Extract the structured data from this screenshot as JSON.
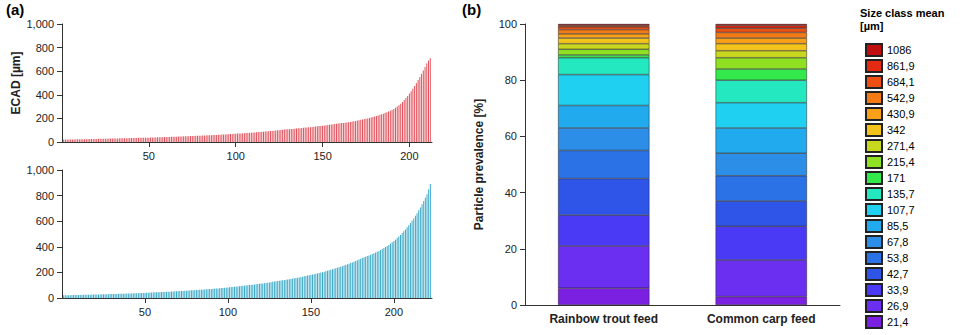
{
  "chart_data": [
    {
      "panel": "(a)",
      "type": "bar",
      "ylabel": "ECAD [µm]",
      "color": "#e0505a",
      "grid": false,
      "xlim": [
        0,
        213
      ],
      "xticks": [
        50,
        100,
        150,
        200
      ],
      "ylim": [
        0,
        1000
      ],
      "yticks": [
        0,
        200,
        400,
        600,
        800,
        1000
      ],
      "x": [
        1,
        2,
        3,
        4,
        5,
        6,
        7,
        8,
        9,
        10,
        11,
        12,
        13,
        14,
        15,
        16,
        17,
        18,
        19,
        20,
        21,
        22,
        23,
        24,
        25,
        26,
        27,
        28,
        29,
        30,
        31,
        32,
        33,
        34,
        35,
        36,
        37,
        38,
        39,
        40,
        41,
        42,
        43,
        44,
        45,
        46,
        47,
        48,
        49,
        50,
        51,
        52,
        53,
        54,
        55,
        56,
        57,
        58,
        59,
        60,
        61,
        62,
        63,
        64,
        65,
        66,
        67,
        68,
        69,
        70,
        71,
        72,
        73,
        74,
        75,
        76,
        77,
        78,
        79,
        80,
        81,
        82,
        83,
        84,
        85,
        86,
        87,
        88,
        89,
        90,
        91,
        92,
        93,
        94,
        95,
        96,
        97,
        98,
        99,
        100,
        101,
        102,
        103,
        104,
        105,
        106,
        107,
        108,
        109,
        110,
        111,
        112,
        113,
        114,
        115,
        116,
        117,
        118,
        119,
        120,
        121,
        122,
        123,
        124,
        125,
        126,
        127,
        128,
        129,
        130,
        131,
        132,
        133,
        134,
        135,
        136,
        137,
        138,
        139,
        140,
        141,
        142,
        143,
        144,
        145,
        146,
        147,
        148,
        149,
        150,
        151,
        152,
        153,
        154,
        155,
        156,
        157,
        158,
        159,
        160,
        161,
        162,
        163,
        164,
        165,
        166,
        167,
        168,
        169,
        170,
        171,
        172,
        173,
        174,
        175,
        176,
        177,
        178,
        179,
        180,
        181,
        182,
        183,
        184,
        185,
        186,
        187,
        188,
        189,
        190,
        191,
        192,
        193,
        194,
        195,
        196,
        197,
        198,
        199,
        200,
        201,
        202,
        203,
        204,
        205,
        206,
        207,
        208,
        209,
        210,
        211,
        212
      ],
      "values": [
        21,
        21,
        21,
        22,
        22,
        22,
        22,
        23,
        23,
        23,
        23,
        24,
        24,
        24,
        25,
        25,
        25,
        26,
        26,
        26,
        27,
        27,
        27,
        28,
        28,
        28,
        29,
        29,
        29,
        30,
        30,
        30,
        31,
        31,
        31,
        32,
        32,
        32,
        33,
        33,
        33,
        34,
        34,
        35,
        35,
        35,
        36,
        36,
        37,
        37,
        38,
        38,
        39,
        39,
        40,
        40,
        41,
        41,
        42,
        42,
        43,
        43,
        44,
        44,
        45,
        45,
        46,
        46,
        47,
        48,
        48,
        49,
        49,
        50,
        51,
        51,
        52,
        53,
        53,
        54,
        55,
        55,
        56,
        57,
        57,
        58,
        59,
        60,
        60,
        61,
        62,
        63,
        64,
        64,
        65,
        66,
        67,
        68,
        69,
        70,
        71,
        72,
        73,
        74,
        75,
        76,
        77,
        78,
        79,
        80,
        81,
        82,
        84,
        85,
        86,
        87,
        89,
        90,
        91,
        93,
        94,
        96,
        97,
        99,
        100,
        102,
        103,
        105,
        107,
        108,
        108,
        110,
        111,
        113,
        114,
        116,
        117,
        119,
        120,
        122,
        123,
        125,
        126,
        128,
        130,
        131,
        133,
        135,
        136,
        138,
        140,
        142,
        144,
        146,
        148,
        150,
        152,
        154,
        156,
        158,
        160,
        162,
        164,
        166,
        168,
        170,
        173,
        176,
        179,
        182,
        185,
        188,
        191,
        194,
        197,
        200,
        204,
        208,
        212,
        216,
        220,
        225,
        230,
        235,
        240,
        246,
        252,
        258,
        265,
        272,
        280,
        290,
        300,
        312,
        325,
        340,
        355,
        372,
        390,
        410,
        430,
        452,
        475,
        500,
        525,
        550,
        578,
        605,
        635,
        665,
        690,
        710
      ]
    },
    {
      "type": "bar",
      "color": "#3aa9c8",
      "grid": false,
      "xlim": [
        0,
        223
      ],
      "xticks": [
        50,
        100,
        150,
        200
      ],
      "ylim": [
        0,
        1000
      ],
      "yticks": [
        0,
        200,
        400,
        600,
        800,
        1000
      ],
      "x": [
        1,
        2,
        3,
        4,
        5,
        6,
        7,
        8,
        9,
        10,
        11,
        12,
        13,
        14,
        15,
        16,
        17,
        18,
        19,
        20,
        21,
        22,
        23,
        24,
        25,
        26,
        27,
        28,
        29,
        30,
        31,
        32,
        33,
        34,
        35,
        36,
        37,
        38,
        39,
        40,
        41,
        42,
        43,
        44,
        45,
        46,
        47,
        48,
        49,
        50,
        51,
        52,
        53,
        54,
        55,
        56,
        57,
        58,
        59,
        60,
        61,
        62,
        63,
        64,
        65,
        66,
        67,
        68,
        69,
        70,
        71,
        72,
        73,
        74,
        75,
        76,
        77,
        78,
        79,
        80,
        81,
        82,
        83,
        84,
        85,
        86,
        87,
        88,
        89,
        90,
        91,
        92,
        93,
        94,
        95,
        96,
        97,
        98,
        99,
        100,
        101,
        102,
        103,
        104,
        105,
        106,
        107,
        108,
        109,
        110,
        111,
        112,
        113,
        114,
        115,
        116,
        117,
        118,
        119,
        120,
        121,
        122,
        123,
        124,
        125,
        126,
        127,
        128,
        129,
        130,
        131,
        132,
        133,
        134,
        135,
        136,
        137,
        138,
        139,
        140,
        141,
        142,
        143,
        144,
        145,
        146,
        147,
        148,
        149,
        150,
        151,
        152,
        153,
        154,
        155,
        156,
        157,
        158,
        159,
        160,
        161,
        162,
        163,
        164,
        165,
        166,
        167,
        168,
        169,
        170,
        171,
        172,
        173,
        174,
        175,
        176,
        177,
        178,
        179,
        180,
        181,
        182,
        183,
        184,
        185,
        186,
        187,
        188,
        189,
        190,
        191,
        192,
        193,
        194,
        195,
        196,
        197,
        198,
        199,
        200,
        201,
        202,
        203,
        204,
        205,
        206,
        207,
        208,
        209,
        210,
        211,
        212,
        213,
        214,
        215,
        216,
        217,
        218,
        219,
        220,
        221,
        222
      ],
      "values": [
        21,
        21,
        22,
        22,
        22,
        23,
        23,
        23,
        24,
        24,
        24,
        25,
        25,
        25,
        26,
        26,
        26,
        27,
        27,
        27,
        28,
        28,
        28,
        29,
        29,
        29,
        30,
        30,
        31,
        31,
        31,
        32,
        32,
        33,
        33,
        33,
        34,
        34,
        35,
        35,
        36,
        36,
        37,
        37,
        38,
        38,
        39,
        39,
        40,
        40,
        41,
        41,
        42,
        42,
        43,
        44,
        44,
        45,
        45,
        46,
        47,
        47,
        48,
        49,
        49,
        50,
        51,
        52,
        52,
        53,
        54,
        55,
        55,
        56,
        57,
        58,
        59,
        60,
        60,
        61,
        62,
        63,
        64,
        65,
        66,
        67,
        68,
        69,
        70,
        71,
        72,
        73,
        74,
        75,
        76,
        78,
        79,
        80,
        81,
        82,
        84,
        85,
        86,
        88,
        89,
        90,
        92,
        93,
        95,
        96,
        98,
        99,
        101,
        102,
        104,
        106,
        107,
        109,
        111,
        113,
        114,
        116,
        118,
        120,
        122,
        124,
        126,
        128,
        130,
        132,
        134,
        136,
        138,
        140,
        142,
        145,
        147,
        149,
        152,
        154,
        156,
        159,
        161,
        164,
        166,
        169,
        172,
        175,
        177,
        180,
        183,
        186,
        189,
        192,
        195,
        199,
        202,
        205,
        209,
        212,
        216,
        220,
        224,
        228,
        232,
        236,
        240,
        245,
        249,
        254,
        258,
        263,
        268,
        273,
        278,
        284,
        289,
        295,
        301,
        307,
        313,
        318,
        323,
        328,
        333,
        338,
        344,
        350,
        356,
        362,
        368,
        375,
        382,
        390,
        398,
        406,
        415,
        425,
        435,
        445,
        456,
        468,
        480,
        493,
        507,
        521,
        536,
        552,
        568,
        585,
        603,
        622,
        642,
        663,
        685,
        708,
        732,
        757,
        783,
        810,
        850,
        890
      ]
    },
    {
      "panel": "(b)",
      "type": "bar",
      "stacked": true,
      "grid": false,
      "legend": "right",
      "legend_title": "Size class mean [µm]",
      "ylabel": "Particle prevalence [%]",
      "ylim": [
        0,
        100
      ],
      "yticks": [
        0,
        20,
        40,
        60,
        80,
        100
      ],
      "categories": [
        "Rainbow trout feed",
        "Common carp feed"
      ],
      "series": [
        {
          "name": "21,4",
          "color": "#7b1fe0",
          "values": [
            6,
            3
          ]
        },
        {
          "name": "26,9",
          "color": "#6a2ff0",
          "values": [
            15,
            13
          ]
        },
        {
          "name": "33,9",
          "color": "#4a3af5",
          "values": [
            11,
            12
          ]
        },
        {
          "name": "42,7",
          "color": "#2f55e8",
          "values": [
            13,
            9
          ]
        },
        {
          "name": "53,8",
          "color": "#2b72e6",
          "values": [
            10,
            9
          ]
        },
        {
          "name": "67,8",
          "color": "#2d8ee8",
          "values": [
            8,
            8
          ]
        },
        {
          "name": "85,5",
          "color": "#22aaee",
          "values": [
            8,
            9
          ]
        },
        {
          "name": "107,7",
          "color": "#1fd0f0",
          "values": [
            11,
            9
          ]
        },
        {
          "name": "135,7",
          "color": "#24e8c0",
          "values": [
            6,
            8
          ]
        },
        {
          "name": "171",
          "color": "#33e84a",
          "values": [
            1,
            4
          ]
        },
        {
          "name": "215,4",
          "color": "#8fe022",
          "values": [
            2,
            4
          ]
        },
        {
          "name": "271,4",
          "color": "#c8d81e",
          "values": [
            2,
            2.5
          ]
        },
        {
          "name": "342",
          "color": "#f4c41a",
          "values": [
            2,
            2.5
          ]
        },
        {
          "name": "430,9",
          "color": "#f8a018",
          "values": [
            1.5,
            2
          ]
        },
        {
          "name": "542,9",
          "color": "#f47a16",
          "values": [
            1.5,
            2
          ]
        },
        {
          "name": "684,1",
          "color": "#ee5014",
          "values": [
            1,
            1.5
          ]
        },
        {
          "name": "861,9",
          "color": "#e42a12",
          "values": [
            0.5,
            1
          ]
        },
        {
          "name": "1086",
          "color": "#c00d0d",
          "values": [
            0.5,
            0.5
          ]
        }
      ]
    }
  ]
}
